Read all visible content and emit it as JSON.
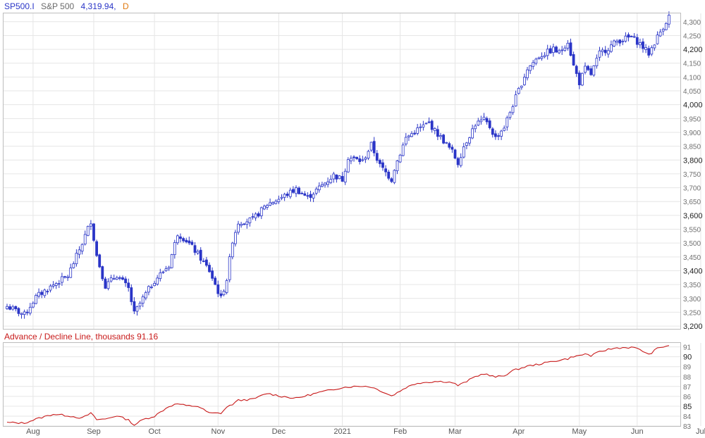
{
  "header": {
    "symbol": "SP500.I",
    "name": "S&P 500",
    "last": "4,319.94,",
    "period": "D"
  },
  "indicator": {
    "title": "Advance / Decline Line, thousands 91.16"
  },
  "colors": {
    "candle": "#2a35c7",
    "line": "#c81a1a",
    "grid": "#e6e6e6",
    "border": "#bdbdbd"
  },
  "chart_data": [
    {
      "type": "candlestick",
      "title": "SP500.I S&P 500",
      "ylim": [
        3190,
        4330
      ],
      "y_ticks": [
        {
          "v": 4300,
          "label": "4,300",
          "major": false
        },
        {
          "v": 4250,
          "label": "4,250",
          "major": false
        },
        {
          "v": 4200,
          "label": "4,200",
          "major": true
        },
        {
          "v": 4150,
          "label": "4,150",
          "major": false
        },
        {
          "v": 4100,
          "label": "4,100",
          "major": false
        },
        {
          "v": 4050,
          "label": "4,050",
          "major": false
        },
        {
          "v": 4000,
          "label": "4,000",
          "major": true
        },
        {
          "v": 3950,
          "label": "3,950",
          "major": false
        },
        {
          "v": 3900,
          "label": "3,900",
          "major": false
        },
        {
          "v": 3850,
          "label": "3,850",
          "major": false
        },
        {
          "v": 3800,
          "label": "3,800",
          "major": true
        },
        {
          "v": 3750,
          "label": "3,750",
          "major": false
        },
        {
          "v": 3700,
          "label": "3,700",
          "major": false
        },
        {
          "v": 3650,
          "label": "3,650",
          "major": false
        },
        {
          "v": 3600,
          "label": "3,600",
          "major": true
        },
        {
          "v": 3550,
          "label": "3,550",
          "major": false
        },
        {
          "v": 3500,
          "label": "3,500",
          "major": false
        },
        {
          "v": 3450,
          "label": "3,450",
          "major": false
        },
        {
          "v": 3400,
          "label": "3,400",
          "major": true
        },
        {
          "v": 3350,
          "label": "3,350",
          "major": false
        },
        {
          "v": 3300,
          "label": "3,300",
          "major": false
        },
        {
          "v": 3250,
          "label": "3,250",
          "major": false
        },
        {
          "v": 3200,
          "label": "3,200",
          "major": true
        }
      ],
      "x_months": [
        "Aug",
        "Sep",
        "Oct",
        "Nov",
        "Dec",
        "2021",
        "Feb",
        "Mar",
        "Apr",
        "May",
        "Jun",
        "Jul"
      ],
      "month_start_index": [
        9,
        30,
        51,
        73,
        94,
        116,
        136,
        155,
        177,
        198,
        218,
        240
      ],
      "close_anchors": [
        [
          0,
          3271
        ],
        [
          6,
          3241
        ],
        [
          10,
          3305
        ],
        [
          16,
          3349
        ],
        [
          21,
          3381
        ],
        [
          26,
          3500
        ],
        [
          29,
          3580
        ],
        [
          31,
          3455
        ],
        [
          34,
          3345
        ],
        [
          38,
          3385
        ],
        [
          42,
          3335
        ],
        [
          44,
          3245
        ],
        [
          47,
          3300
        ],
        [
          51,
          3365
        ],
        [
          56,
          3420
        ],
        [
          59,
          3535
        ],
        [
          62,
          3510
        ],
        [
          66,
          3460
        ],
        [
          70,
          3400
        ],
        [
          74,
          3300
        ],
        [
          76,
          3370
        ],
        [
          78,
          3510
        ],
        [
          80,
          3575
        ],
        [
          85,
          3585
        ],
        [
          90,
          3640
        ],
        [
          95,
          3665
        ],
        [
          100,
          3695
        ],
        [
          104,
          3665
        ],
        [
          108,
          3700
        ],
        [
          113,
          3745
        ],
        [
          116,
          3730
        ],
        [
          118,
          3810
        ],
        [
          123,
          3795
        ],
        [
          126,
          3855
        ],
        [
          129,
          3780
        ],
        [
          133,
          3730
        ],
        [
          134,
          3770
        ],
        [
          138,
          3880
        ],
        [
          142,
          3910
        ],
        [
          146,
          3935
        ],
        [
          148,
          3905
        ],
        [
          151,
          3870
        ],
        [
          154,
          3830
        ],
        [
          156,
          3790
        ],
        [
          158,
          3850
        ],
        [
          162,
          3930
        ],
        [
          165,
          3945
        ],
        [
          167,
          3920
        ],
        [
          169,
          3880
        ],
        [
          172,
          3920
        ],
        [
          175,
          4000
        ],
        [
          180,
          4130
        ],
        [
          184,
          4175
        ],
        [
          189,
          4200
        ],
        [
          191,
          4187
        ],
        [
          194,
          4230
        ],
        [
          196,
          4140
        ],
        [
          198,
          4080
        ],
        [
          200,
          4130
        ],
        [
          202,
          4110
        ],
        [
          205,
          4185
        ],
        [
          208,
          4205
        ],
        [
          211,
          4230
        ],
        [
          216,
          4245
        ],
        [
          219,
          4220
        ],
        [
          222,
          4185
        ],
        [
          225,
          4245
        ],
        [
          229,
          4319.94
        ]
      ]
    },
    {
      "type": "line",
      "title": "Advance / Decline Line, thousands 91.16",
      "series": [
        {
          "name": "Advance / Decline Line",
          "last": 91.16
        }
      ],
      "ylim": [
        83,
        91.4
      ],
      "y_ticks": [
        {
          "v": 91,
          "label": "91",
          "major": false
        },
        {
          "v": 90,
          "label": "90",
          "major": true
        },
        {
          "v": 89,
          "label": "89",
          "major": false
        },
        {
          "v": 88,
          "label": "88",
          "major": false
        },
        {
          "v": 87,
          "label": "87",
          "major": false
        },
        {
          "v": 86,
          "label": "86",
          "major": false
        },
        {
          "v": 85,
          "label": "85",
          "major": true
        },
        {
          "v": 84,
          "label": "84",
          "major": false
        },
        {
          "v": 83,
          "label": "83",
          "major": false
        }
      ],
      "anchors": [
        [
          0,
          83.35
        ],
        [
          6,
          83.3
        ],
        [
          10,
          83.7
        ],
        [
          16,
          84.2
        ],
        [
          21,
          84.05
        ],
        [
          26,
          83.8
        ],
        [
          29,
          84.3
        ],
        [
          31,
          83.65
        ],
        [
          34,
          83.7
        ],
        [
          38,
          84.05
        ],
        [
          42,
          83.6
        ],
        [
          44,
          83.1
        ],
        [
          47,
          83.65
        ],
        [
          51,
          84.0
        ],
        [
          56,
          85.0
        ],
        [
          59,
          85.25
        ],
        [
          62,
          85.05
        ],
        [
          66,
          85.0
        ],
        [
          70,
          84.3
        ],
        [
          74,
          84.3
        ],
        [
          76,
          84.9
        ],
        [
          78,
          85.2
        ],
        [
          80,
          85.6
        ],
        [
          85,
          85.7
        ],
        [
          90,
          86.3
        ],
        [
          95,
          86.0
        ],
        [
          100,
          85.8
        ],
        [
          104,
          86.1
        ],
        [
          108,
          86.4
        ],
        [
          113,
          86.7
        ],
        [
          116,
          86.9
        ],
        [
          118,
          86.95
        ],
        [
          123,
          87.05
        ],
        [
          126,
          86.95
        ],
        [
          129,
          86.6
        ],
        [
          133,
          86.05
        ],
        [
          134,
          86.2
        ],
        [
          138,
          86.9
        ],
        [
          142,
          87.35
        ],
        [
          146,
          87.45
        ],
        [
          148,
          87.5
        ],
        [
          151,
          87.5
        ],
        [
          154,
          87.4
        ],
        [
          156,
          87.1
        ],
        [
          158,
          87.35
        ],
        [
          162,
          88.0
        ],
        [
          165,
          88.3
        ],
        [
          167,
          88.1
        ],
        [
          169,
          87.95
        ],
        [
          172,
          88.1
        ],
        [
          175,
          88.6
        ],
        [
          180,
          89.05
        ],
        [
          184,
          89.25
        ],
        [
          189,
          89.55
        ],
        [
          191,
          89.65
        ],
        [
          194,
          89.8
        ],
        [
          196,
          90.05
        ],
        [
          198,
          90.1
        ],
        [
          200,
          90.3
        ],
        [
          202,
          90.1
        ],
        [
          205,
          90.5
        ],
        [
          208,
          90.75
        ],
        [
          211,
          90.9
        ],
        [
          216,
          90.95
        ],
        [
          219,
          90.75
        ],
        [
          222,
          90.2
        ],
        [
          225,
          90.85
        ],
        [
          229,
          91.16
        ]
      ]
    }
  ]
}
